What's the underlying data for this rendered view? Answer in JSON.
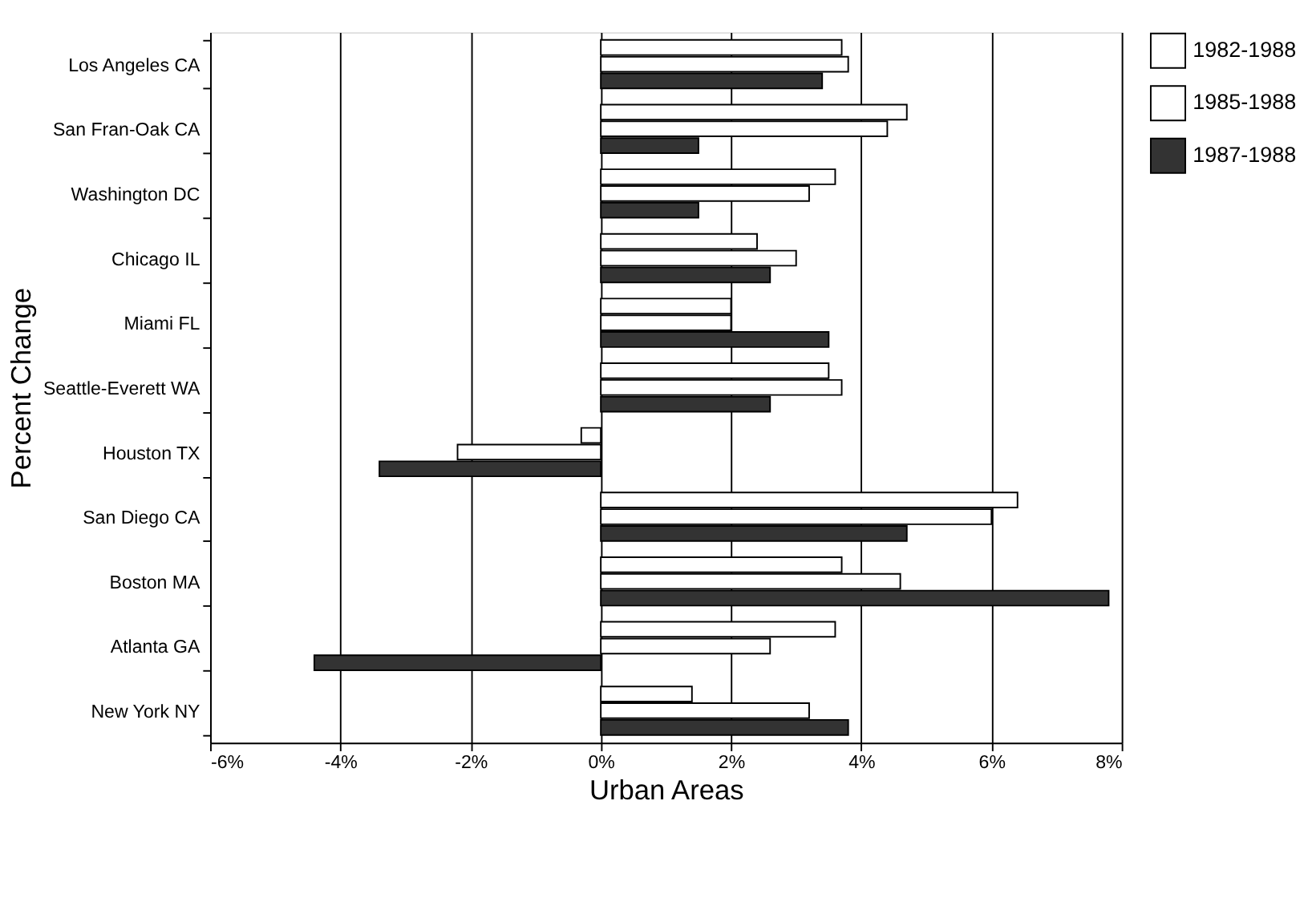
{
  "chart_data": {
    "type": "bar",
    "orientation": "horizontal",
    "xlabel": "Urban Areas",
    "ylabel": "Percent Change",
    "categories": [
      "Los Angeles CA",
      "San Fran-Oak CA",
      "Washington DC",
      "Chicago IL",
      "Miami FL",
      "Seattle-Everett WA",
      "Houston TX",
      "San Diego CA",
      "Boston MA",
      "Atlanta GA",
      "New York NY"
    ],
    "series": [
      {
        "name": "1982-1988",
        "color": "#ffffff",
        "values": [
          3.7,
          4.7,
          3.6,
          2.4,
          2.0,
          3.5,
          -0.3,
          6.4,
          3.7,
          3.6,
          1.4
        ]
      },
      {
        "name": "1985-1988",
        "color": "#ffffff",
        "values": [
          3.8,
          4.4,
          3.2,
          3.0,
          2.0,
          3.7,
          -2.2,
          6.0,
          4.6,
          2.6,
          3.2
        ]
      },
      {
        "name": "1987-1988",
        "color": "#333333",
        "values": [
          3.4,
          1.5,
          1.5,
          2.6,
          3.5,
          2.6,
          -3.4,
          4.7,
          7.8,
          -4.4,
          3.8
        ]
      }
    ],
    "xlim": [
      -6,
      8
    ],
    "xticks": [
      {
        "value": -6,
        "label": "-6%"
      },
      {
        "value": -4,
        "label": "-4%"
      },
      {
        "value": -2,
        "label": "-2%"
      },
      {
        "value": 0,
        "label": "0%"
      },
      {
        "value": 2,
        "label": "2%"
      },
      {
        "value": 4,
        "label": "4%"
      },
      {
        "value": 6,
        "label": "6%"
      },
      {
        "value": 8,
        "label": "8%"
      }
    ],
    "grid": "x",
    "legend": "top right"
  }
}
